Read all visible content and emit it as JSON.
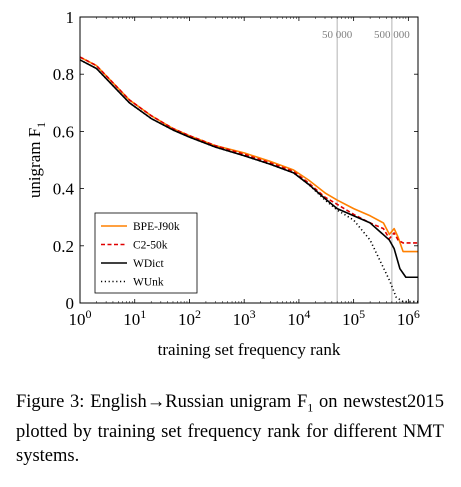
{
  "chart_data": {
    "type": "line",
    "ylabel": "unigram F",
    "ylabel_sub": "1",
    "xlabel": "training set frequency rank",
    "x_scale": "log",
    "xlim": [
      1,
      1500000
    ],
    "ylim": [
      0,
      1
    ],
    "x_ticks": [
      {
        "value": 1,
        "base": "10",
        "exp": "0"
      },
      {
        "value": 10,
        "base": "10",
        "exp": "1"
      },
      {
        "value": 100,
        "base": "10",
        "exp": "2"
      },
      {
        "value": 1000,
        "base": "10",
        "exp": "3"
      },
      {
        "value": 10000,
        "base": "10",
        "exp": "4"
      },
      {
        "value": 100000,
        "base": "10",
        "exp": "5"
      },
      {
        "value": 1000000,
        "base": "10",
        "exp": "6"
      }
    ],
    "y_ticks": [
      {
        "value": 0,
        "label": "0"
      },
      {
        "value": 0.2,
        "label": "0.2"
      },
      {
        "value": 0.4,
        "label": "0.4"
      },
      {
        "value": 0.6,
        "label": "0.6"
      },
      {
        "value": 0.8,
        "label": "0.8"
      },
      {
        "value": 1,
        "label": "1"
      }
    ],
    "reference_lines": [
      {
        "x": 50000,
        "label": "50 000"
      },
      {
        "x": 500000,
        "label": "500 000"
      }
    ],
    "grid": false,
    "legend_position": "bottom-left",
    "series": [
      {
        "name": "BPE-J90k",
        "color": "#ff8000",
        "dash": "solid",
        "points": [
          [
            1,
            0.86
          ],
          [
            2,
            0.83
          ],
          [
            4,
            0.77
          ],
          [
            8,
            0.71
          ],
          [
            20,
            0.655
          ],
          [
            50,
            0.61
          ],
          [
            100,
            0.585
          ],
          [
            300,
            0.55
          ],
          [
            1000,
            0.525
          ],
          [
            3000,
            0.495
          ],
          [
            8000,
            0.465
          ],
          [
            15000,
            0.43
          ],
          [
            30000,
            0.385
          ],
          [
            50000,
            0.36
          ],
          [
            100000,
            0.33
          ],
          [
            200000,
            0.305
          ],
          [
            350000,
            0.28
          ],
          [
            450000,
            0.24
          ],
          [
            550000,
            0.26
          ],
          [
            650000,
            0.23
          ],
          [
            800000,
            0.18
          ],
          [
            1000000,
            0.18
          ],
          [
            1500000,
            0.18
          ]
        ]
      },
      {
        "name": "C2-50k",
        "color": "#e00000",
        "dash": "dashed",
        "points": [
          [
            1,
            0.86
          ],
          [
            2,
            0.83
          ],
          [
            4,
            0.77
          ],
          [
            8,
            0.71
          ],
          [
            20,
            0.655
          ],
          [
            50,
            0.61
          ],
          [
            100,
            0.585
          ],
          [
            300,
            0.55
          ],
          [
            1000,
            0.52
          ],
          [
            3000,
            0.49
          ],
          [
            8000,
            0.46
          ],
          [
            15000,
            0.42
          ],
          [
            30000,
            0.37
          ],
          [
            50000,
            0.345
          ],
          [
            100000,
            0.31
          ],
          [
            200000,
            0.28
          ],
          [
            350000,
            0.26
          ],
          [
            450000,
            0.225
          ],
          [
            550000,
            0.245
          ],
          [
            650000,
            0.22
          ],
          [
            800000,
            0.21
          ],
          [
            1000000,
            0.21
          ],
          [
            1500000,
            0.21
          ]
        ]
      },
      {
        "name": "WDict",
        "color": "#000000",
        "dash": "solid",
        "points": [
          [
            1,
            0.85
          ],
          [
            2,
            0.82
          ],
          [
            4,
            0.76
          ],
          [
            8,
            0.7
          ],
          [
            20,
            0.645
          ],
          [
            50,
            0.605
          ],
          [
            100,
            0.58
          ],
          [
            300,
            0.545
          ],
          [
            1000,
            0.515
          ],
          [
            3000,
            0.485
          ],
          [
            8000,
            0.455
          ],
          [
            15000,
            0.415
          ],
          [
            30000,
            0.365
          ],
          [
            50000,
            0.33
          ],
          [
            100000,
            0.305
          ],
          [
            200000,
            0.28
          ],
          [
            300000,
            0.25
          ],
          [
            450000,
            0.22
          ],
          [
            550000,
            0.19
          ],
          [
            700000,
            0.12
          ],
          [
            900000,
            0.09
          ],
          [
            1500000,
            0.09
          ]
        ]
      },
      {
        "name": "WUnk",
        "color": "#000000",
        "dash": "dotted",
        "points": [
          [
            1,
            0.85
          ],
          [
            2,
            0.82
          ],
          [
            4,
            0.76
          ],
          [
            8,
            0.7
          ],
          [
            20,
            0.645
          ],
          [
            50,
            0.605
          ],
          [
            100,
            0.58
          ],
          [
            300,
            0.545
          ],
          [
            1000,
            0.515
          ],
          [
            3000,
            0.485
          ],
          [
            8000,
            0.455
          ],
          [
            15000,
            0.415
          ],
          [
            30000,
            0.36
          ],
          [
            50000,
            0.325
          ],
          [
            100000,
            0.29
          ],
          [
            200000,
            0.22
          ],
          [
            300000,
            0.15
          ],
          [
            450000,
            0.08
          ],
          [
            600000,
            0.02
          ],
          [
            800000,
            0.005
          ],
          [
            1500000,
            0.005
          ]
        ]
      }
    ]
  },
  "caption": {
    "part1": "Figure 3: English",
    "arrow": "→",
    "part2": "Russian unigram F",
    "sub": "1",
    "part3": " on newstest2015 plotted by training set frequency rank for different NMT systems."
  }
}
